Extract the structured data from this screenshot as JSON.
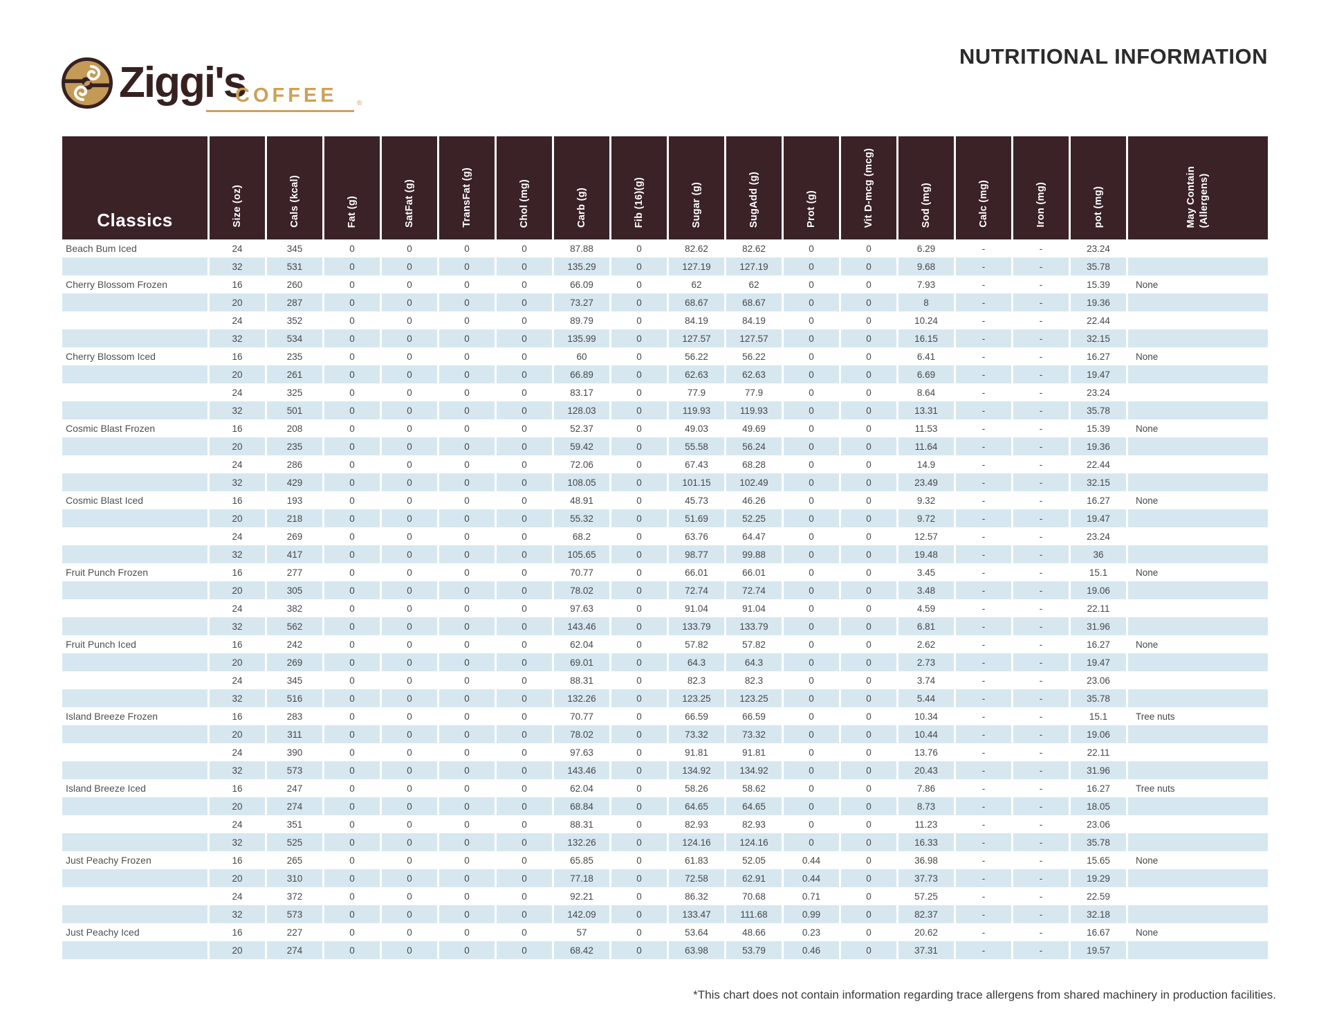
{
  "header": {
    "brand": {
      "name": "Ziggi's",
      "word": "COFFEE",
      "reg": "®"
    },
    "title": "NUTRITIONAL INFORMATION"
  },
  "table": {
    "category_label": "Classics",
    "columns": [
      "Size (oz)",
      "Cals (kcal)",
      "Fat (g)",
      "SatFat (g)",
      "TransFat (g)",
      "Chol (mg)",
      "Carb (g)",
      "Fib (16)(g)",
      "Sugar (g)",
      "SugAdd (g)",
      "Prot (g)",
      "Vit D-mcg (mcg)",
      "Sod (mg)",
      "Calc (mg)",
      "Iron (mg)",
      "pot (mg)",
      "May Contain\n(Allergens)"
    ],
    "rows": [
      {
        "name": "Beach Bum Iced",
        "values": [
          "24",
          "345",
          "0",
          "0",
          "0",
          "0",
          "87.88",
          "0",
          "82.62",
          "82.62",
          "0",
          "0",
          "6.29",
          "-",
          "-",
          "23.24",
          ""
        ]
      },
      {
        "name": "",
        "values": [
          "32",
          "531",
          "0",
          "0",
          "0",
          "0",
          "135.29",
          "0",
          "127.19",
          "127.19",
          "0",
          "0",
          "9.68",
          "-",
          "-",
          "35.78",
          ""
        ]
      },
      {
        "name": "Cherry Blossom Frozen",
        "values": [
          "16",
          "260",
          "0",
          "0",
          "0",
          "0",
          "66.09",
          "0",
          "62",
          "62",
          "0",
          "0",
          "7.93",
          "-",
          "-",
          "15.39",
          "None"
        ]
      },
      {
        "name": "",
        "values": [
          "20",
          "287",
          "0",
          "0",
          "0",
          "0",
          "73.27",
          "0",
          "68.67",
          "68.67",
          "0",
          "0",
          "8",
          "-",
          "-",
          "19.36",
          ""
        ]
      },
      {
        "name": "",
        "values": [
          "24",
          "352",
          "0",
          "0",
          "0",
          "0",
          "89.79",
          "0",
          "84.19",
          "84.19",
          "0",
          "0",
          "10.24",
          "-",
          "-",
          "22.44",
          ""
        ]
      },
      {
        "name": "",
        "values": [
          "32",
          "534",
          "0",
          "0",
          "0",
          "0",
          "135.99",
          "0",
          "127.57",
          "127.57",
          "0",
          "0",
          "16.15",
          "-",
          "-",
          "32.15",
          ""
        ]
      },
      {
        "name": "Cherry Blossom Iced",
        "values": [
          "16",
          "235",
          "0",
          "0",
          "0",
          "0",
          "60",
          "0",
          "56.22",
          "56.22",
          "0",
          "0",
          "6.41",
          "-",
          "-",
          "16.27",
          "None"
        ]
      },
      {
        "name": "",
        "values": [
          "20",
          "261",
          "0",
          "0",
          "0",
          "0",
          "66.89",
          "0",
          "62.63",
          "62.63",
          "0",
          "0",
          "6.69",
          "-",
          "-",
          "19.47",
          ""
        ]
      },
      {
        "name": "",
        "values": [
          "24",
          "325",
          "0",
          "0",
          "0",
          "0",
          "83.17",
          "0",
          "77.9",
          "77.9",
          "0",
          "0",
          "8.64",
          "-",
          "-",
          "23.24",
          ""
        ]
      },
      {
        "name": "",
        "values": [
          "32",
          "501",
          "0",
          "0",
          "0",
          "0",
          "128.03",
          "0",
          "119.93",
          "119.93",
          "0",
          "0",
          "13.31",
          "-",
          "-",
          "35.78",
          ""
        ]
      },
      {
        "name": "Cosmic Blast Frozen",
        "values": [
          "16",
          "208",
          "0",
          "0",
          "0",
          "0",
          "52.37",
          "0",
          "49.03",
          "49.69",
          "0",
          "0",
          "11.53",
          "-",
          "-",
          "15.39",
          "None"
        ]
      },
      {
        "name": "",
        "values": [
          "20",
          "235",
          "0",
          "0",
          "0",
          "0",
          "59.42",
          "0",
          "55.58",
          "56.24",
          "0",
          "0",
          "11.64",
          "-",
          "-",
          "19.36",
          ""
        ]
      },
      {
        "name": "",
        "values": [
          "24",
          "286",
          "0",
          "0",
          "0",
          "0",
          "72.06",
          "0",
          "67.43",
          "68.28",
          "0",
          "0",
          "14.9",
          "-",
          "-",
          "22.44",
          ""
        ]
      },
      {
        "name": "",
        "values": [
          "32",
          "429",
          "0",
          "0",
          "0",
          "0",
          "108.05",
          "0",
          "101.15",
          "102.49",
          "0",
          "0",
          "23.49",
          "-",
          "-",
          "32.15",
          ""
        ]
      },
      {
        "name": "Cosmic Blast Iced",
        "values": [
          "16",
          "193",
          "0",
          "0",
          "0",
          "0",
          "48.91",
          "0",
          "45.73",
          "46.26",
          "0",
          "0",
          "9.32",
          "-",
          "-",
          "16.27",
          "None"
        ]
      },
      {
        "name": "",
        "values": [
          "20",
          "218",
          "0",
          "0",
          "0",
          "0",
          "55.32",
          "0",
          "51.69",
          "52.25",
          "0",
          "0",
          "9.72",
          "-",
          "-",
          "19.47",
          ""
        ]
      },
      {
        "name": "",
        "values": [
          "24",
          "269",
          "0",
          "0",
          "0",
          "0",
          "68.2",
          "0",
          "63.76",
          "64.47",
          "0",
          "0",
          "12.57",
          "-",
          "-",
          "23.24",
          ""
        ]
      },
      {
        "name": "",
        "values": [
          "32",
          "417",
          "0",
          "0",
          "0",
          "0",
          "105.65",
          "0",
          "98.77",
          "99.88",
          "0",
          "0",
          "19.48",
          "-",
          "-",
          "36",
          ""
        ]
      },
      {
        "name": "Fruit Punch Frozen",
        "values": [
          "16",
          "277",
          "0",
          "0",
          "0",
          "0",
          "70.77",
          "0",
          "66.01",
          "66.01",
          "0",
          "0",
          "3.45",
          "-",
          "-",
          "15.1",
          "None"
        ]
      },
      {
        "name": "",
        "values": [
          "20",
          "305",
          "0",
          "0",
          "0",
          "0",
          "78.02",
          "0",
          "72.74",
          "72.74",
          "0",
          "0",
          "3.48",
          "-",
          "-",
          "19.06",
          ""
        ]
      },
      {
        "name": "",
        "values": [
          "24",
          "382",
          "0",
          "0",
          "0",
          "0",
          "97.63",
          "0",
          "91.04",
          "91.04",
          "0",
          "0",
          "4.59",
          "-",
          "-",
          "22.11",
          ""
        ]
      },
      {
        "name": "",
        "values": [
          "32",
          "562",
          "0",
          "0",
          "0",
          "0",
          "143.46",
          "0",
          "133.79",
          "133.79",
          "0",
          "0",
          "6.81",
          "-",
          "-",
          "31.96",
          ""
        ]
      },
      {
        "name": "Fruit Punch Iced",
        "values": [
          "16",
          "242",
          "0",
          "0",
          "0",
          "0",
          "62.04",
          "0",
          "57.82",
          "57.82",
          "0",
          "0",
          "2.62",
          "-",
          "-",
          "16.27",
          "None"
        ]
      },
      {
        "name": "",
        "values": [
          "20",
          "269",
          "0",
          "0",
          "0",
          "0",
          "69.01",
          "0",
          "64.3",
          "64.3",
          "0",
          "0",
          "2.73",
          "-",
          "-",
          "19.47",
          ""
        ]
      },
      {
        "name": "",
        "values": [
          "24",
          "345",
          "0",
          "0",
          "0",
          "0",
          "88.31",
          "0",
          "82.3",
          "82.3",
          "0",
          "0",
          "3.74",
          "-",
          "-",
          "23.06",
          ""
        ]
      },
      {
        "name": "",
        "values": [
          "32",
          "516",
          "0",
          "0",
          "0",
          "0",
          "132.26",
          "0",
          "123.25",
          "123.25",
          "0",
          "0",
          "5.44",
          "-",
          "-",
          "35.78",
          ""
        ]
      },
      {
        "name": "Island Breeze Frozen",
        "values": [
          "16",
          "283",
          "0",
          "0",
          "0",
          "0",
          "70.77",
          "0",
          "66.59",
          "66.59",
          "0",
          "0",
          "10.34",
          "-",
          "-",
          "15.1",
          "Tree nuts"
        ]
      },
      {
        "name": "",
        "values": [
          "20",
          "311",
          "0",
          "0",
          "0",
          "0",
          "78.02",
          "0",
          "73.32",
          "73.32",
          "0",
          "0",
          "10.44",
          "-",
          "-",
          "19.06",
          ""
        ]
      },
      {
        "name": "",
        "values": [
          "24",
          "390",
          "0",
          "0",
          "0",
          "0",
          "97.63",
          "0",
          "91.81",
          "91.81",
          "0",
          "0",
          "13.76",
          "-",
          "-",
          "22.11",
          ""
        ]
      },
      {
        "name": "",
        "values": [
          "32",
          "573",
          "0",
          "0",
          "0",
          "0",
          "143.46",
          "0",
          "134.92",
          "134.92",
          "0",
          "0",
          "20.43",
          "-",
          "-",
          "31.96",
          ""
        ]
      },
      {
        "name": "Island Breeze Iced",
        "values": [
          "16",
          "247",
          "0",
          "0",
          "0",
          "0",
          "62.04",
          "0",
          "58.26",
          "58.62",
          "0",
          "0",
          "7.86",
          "-",
          "-",
          "16.27",
          "Tree nuts"
        ]
      },
      {
        "name": "",
        "values": [
          "20",
          "274",
          "0",
          "0",
          "0",
          "0",
          "68.84",
          "0",
          "64.65",
          "64.65",
          "0",
          "0",
          "8.73",
          "-",
          "-",
          "18.05",
          ""
        ]
      },
      {
        "name": "",
        "values": [
          "24",
          "351",
          "0",
          "0",
          "0",
          "0",
          "88.31",
          "0",
          "82.93",
          "82.93",
          "0",
          "0",
          "11.23",
          "-",
          "-",
          "23.06",
          ""
        ]
      },
      {
        "name": "",
        "values": [
          "32",
          "525",
          "0",
          "0",
          "0",
          "0",
          "132.26",
          "0",
          "124.16",
          "124.16",
          "0",
          "0",
          "16.33",
          "-",
          "-",
          "35.78",
          ""
        ]
      },
      {
        "name": "Just Peachy Frozen",
        "values": [
          "16",
          "265",
          "0",
          "0",
          "0",
          "0",
          "65.85",
          "0",
          "61.83",
          "52.05",
          "0.44",
          "0",
          "36.98",
          "-",
          "-",
          "15.65",
          "None"
        ]
      },
      {
        "name": "",
        "values": [
          "20",
          "310",
          "0",
          "0",
          "0",
          "0",
          "77.18",
          "0",
          "72.58",
          "62.91",
          "0.44",
          "0",
          "37.73",
          "-",
          "-",
          "19.29",
          ""
        ]
      },
      {
        "name": "",
        "values": [
          "24",
          "372",
          "0",
          "0",
          "0",
          "0",
          "92.21",
          "0",
          "86.32",
          "70.68",
          "0.71",
          "0",
          "57.25",
          "-",
          "-",
          "22.59",
          ""
        ]
      },
      {
        "name": "",
        "values": [
          "32",
          "573",
          "0",
          "0",
          "0",
          "0",
          "142.09",
          "0",
          "133.47",
          "111.68",
          "0.99",
          "0",
          "82.37",
          "-",
          "-",
          "32.18",
          ""
        ]
      },
      {
        "name": "Just Peachy Iced",
        "values": [
          "16",
          "227",
          "0",
          "0",
          "0",
          "0",
          "57",
          "0",
          "53.64",
          "48.66",
          "0.23",
          "0",
          "20.62",
          "-",
          "-",
          "16.67",
          "None"
        ]
      },
      {
        "name": "",
        "values": [
          "20",
          "274",
          "0",
          "0",
          "0",
          "0",
          "68.42",
          "0",
          "63.98",
          "53.79",
          "0.46",
          "0",
          "37.31",
          "-",
          "-",
          "19.57",
          ""
        ]
      }
    ],
    "layout": {
      "name_col_width": 210,
      "num_col_width": 83,
      "allergen_col_width": 205
    }
  },
  "footnote": "*This chart does not contain information regarding trace allergens from shared machinery in production facilities.",
  "colors": {
    "header_bg": "#3a2227",
    "row_alt": "#d6e7f0",
    "brand_brown": "#372120",
    "brand_gold": "#cfa055",
    "emblem_fill": "#c49a57",
    "cell_text": "#474747",
    "title_text": "#2b2b2b"
  }
}
